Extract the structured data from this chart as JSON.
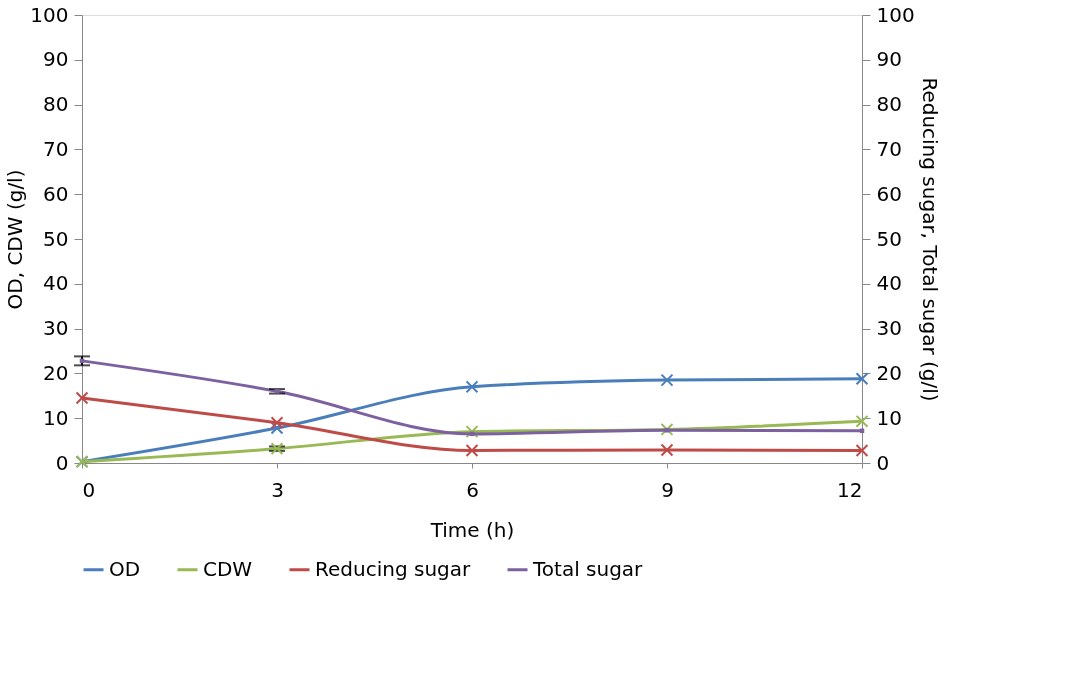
{
  "chart_data": {
    "type": "line",
    "xlabel": "Time (h)",
    "ylabel": "OD, CDW (g/l)",
    "y2label": "Reducing sugar, Total sugar (g/l)",
    "x": [
      0,
      3,
      6,
      9,
      12
    ],
    "xlim": [
      0,
      12
    ],
    "xticks": [
      0,
      3,
      6,
      9,
      12
    ],
    "ylim": [
      0,
      100
    ],
    "yticks": [
      0,
      10,
      20,
      30,
      40,
      50,
      60,
      70,
      80,
      90,
      100
    ],
    "y2lim": [
      0,
      100
    ],
    "y2ticks": [
      0,
      10,
      20,
      30,
      40,
      50,
      60,
      70,
      80,
      90,
      100
    ],
    "grid": false,
    "legend": "bottom",
    "line_style": "solid",
    "series": [
      {
        "name": "OD",
        "color": "#4a7ebb",
        "marker": "cross",
        "values": [
          0.3,
          7.8,
          17,
          18.5,
          18.8
        ]
      },
      {
        "name": "CDW",
        "color": "#98b954",
        "marker": "cross",
        "values": [
          0.3,
          3.2,
          7,
          7.5,
          9.3
        ],
        "errors": [
          null,
          0.5,
          null,
          null,
          null
        ]
      },
      {
        "name": "Reducing sugar",
        "color": "#be4b48",
        "marker": "cross",
        "axis": "y2",
        "values": [
          14.5,
          9,
          2.8,
          2.9,
          2.8
        ]
      },
      {
        "name": "Total sugar",
        "color": "#7d60a0",
        "marker": "square",
        "axis": "y2",
        "values": [
          22.8,
          16,
          6.5,
          7.3,
          7.2
        ],
        "errors": [
          1,
          0.5,
          null,
          null,
          null
        ]
      }
    ]
  }
}
